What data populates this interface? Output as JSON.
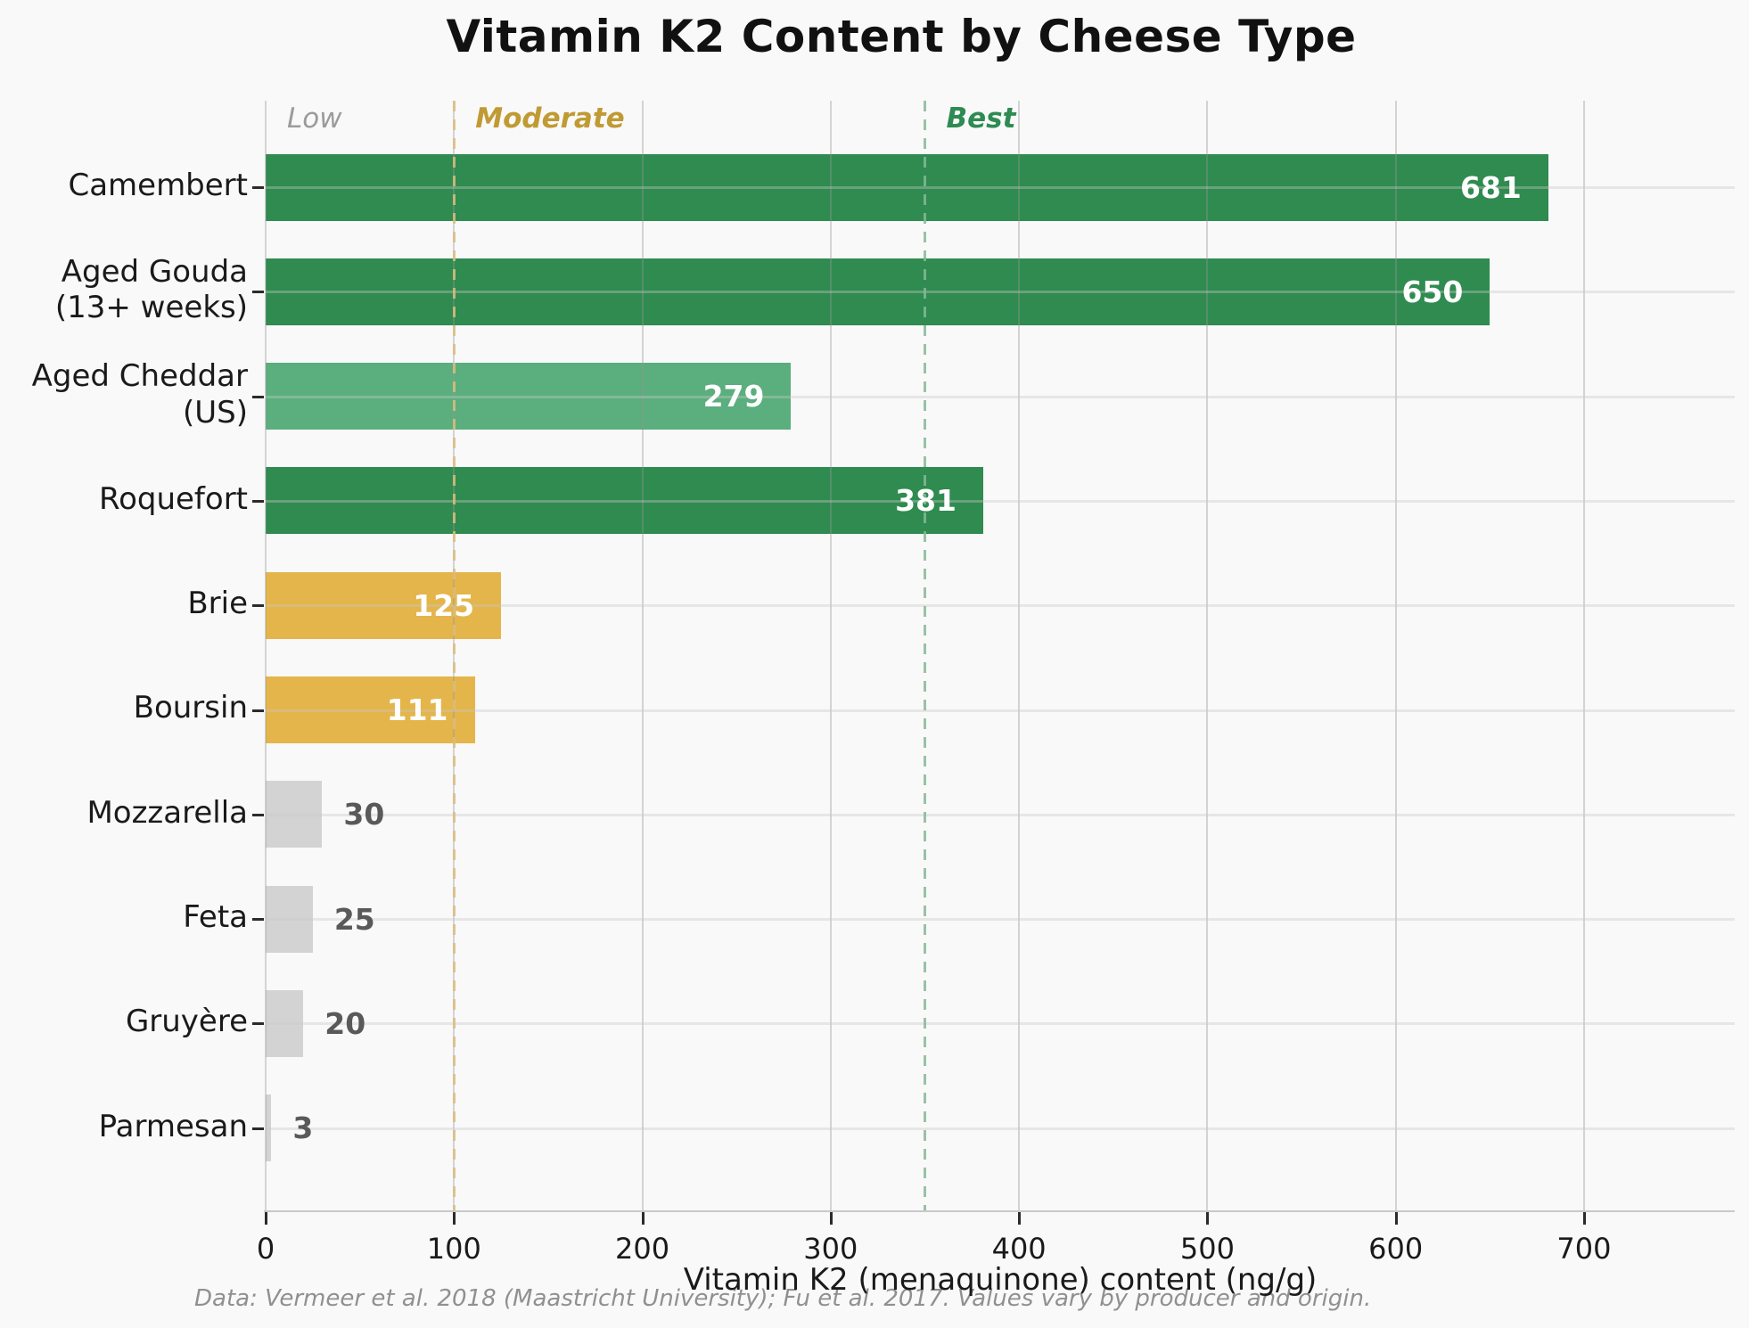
{
  "title": "Vitamin K2 Content by Cheese Type",
  "chart_data": {
    "type": "bar",
    "orientation": "horizontal",
    "title": "Vitamin K2 Content by Cheese Type",
    "categories": [
      "Camembert",
      "Aged Gouda\n(13+ weeks)",
      "Aged Cheddar\n(US)",
      "Roquefort",
      "Brie",
      "Boursin",
      "Mozzarella",
      "Feta",
      "Gruyère",
      "Parmesan"
    ],
    "values": [
      681,
      650,
      279,
      381,
      125,
      111,
      30,
      25,
      20,
      3
    ],
    "bar_colors": [
      "#2f8b4f",
      "#2f8b4f",
      "#5bae7d",
      "#2f8b4f",
      "#e4b54a",
      "#e4b54a",
      "#d3d3d3",
      "#d3d3d3",
      "#d3d3d3",
      "#d3d3d3"
    ],
    "value_label_colors_inside": "#ffffff",
    "value_label_colors_outside": "#595959",
    "xlabel": "Vitamin K2 (menaquinone) content (ng/g)",
    "xlim": [
      0,
      780
    ],
    "xticks": [
      0,
      100,
      200,
      300,
      400,
      500,
      600,
      700
    ],
    "grid": true,
    "legend": "none",
    "zones": [
      {
        "label": "Low",
        "start": 0,
        "color": "#9b9b9b",
        "bold": false,
        "line": false,
        "line_color": null
      },
      {
        "label": "Moderate",
        "start": 100,
        "color": "#c09a33",
        "bold": true,
        "line": true,
        "line_color": "#dcbd7e"
      },
      {
        "label": "Best",
        "start": 350,
        "color": "#2e8b51",
        "bold": true,
        "line": true,
        "line_color": "#84b997"
      }
    ],
    "footnote": "Data: Vermeer et al. 2018 (Maastricht University); Fu et al. 2017. Values vary by producer and origin."
  }
}
